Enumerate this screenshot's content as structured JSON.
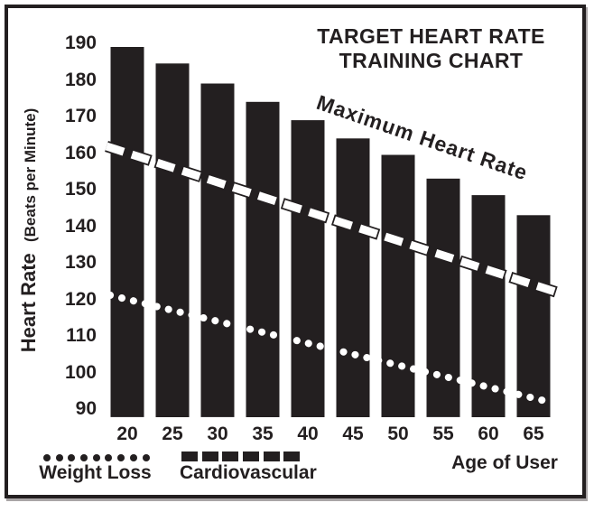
{
  "colors": {
    "ink": "#231f20",
    "background": "#ffffff",
    "line_white": "#ffffff"
  },
  "chart_data": {
    "type": "bar",
    "title": "TARGET HEART RATE TRAINING CHART",
    "title_lines": [
      "TARGET HEART RATE",
      "TRAINING CHART"
    ],
    "xlabel": "Age of User",
    "ylabel": "Heart Rate",
    "ylabel_sub": "(Beats per Minute)",
    "categories": [
      20,
      25,
      30,
      35,
      40,
      45,
      50,
      55,
      60,
      65
    ],
    "y_ticks": [
      190,
      180,
      170,
      160,
      150,
      140,
      130,
      120,
      110,
      100,
      90
    ],
    "ylim": [
      90,
      190
    ],
    "grid": false,
    "legend_position": "bottom",
    "series": [
      {
        "name": "Maximum Heart Rate",
        "type": "bar",
        "color": "#231f20",
        "values": [
          189,
          184.5,
          179,
          174,
          169,
          164,
          159.5,
          153,
          148.5,
          143
        ]
      },
      {
        "name": "Cardiovascular",
        "type": "dashed-line",
        "color": "#ffffff",
        "outline": "#231f20",
        "values": [
          160,
          156,
          152,
          148,
          144,
          140,
          136,
          132,
          128,
          124
        ]
      },
      {
        "name": "Weight Loss",
        "type": "dotted-line",
        "color": "#ffffff",
        "values": [
          120,
          117,
          114,
          111,
          108,
          105,
          102,
          99,
          96,
          93
        ]
      }
    ],
    "annotations": [
      {
        "text": "Maximum Heart Rate",
        "rotation_deg": 19
      }
    ],
    "legend": [
      {
        "label": "Weight Loss",
        "marker": "dots",
        "marker_count": 9
      },
      {
        "label": "Cardiovascular",
        "marker": "dashes",
        "marker_count": 6
      }
    ]
  }
}
